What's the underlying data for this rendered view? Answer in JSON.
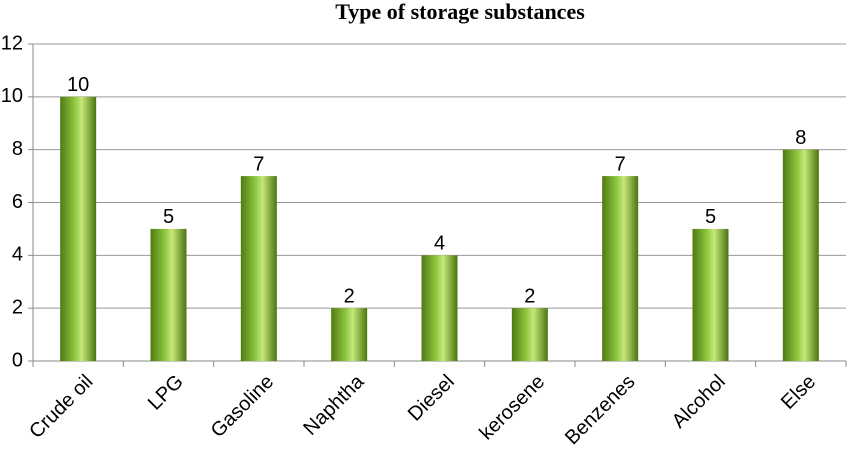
{
  "chart_data": {
    "type": "bar",
    "title": "Type of storage substances",
    "categories": [
      "Crude oil",
      "LPG",
      "Gasoline",
      "Naphtha",
      "Diesel",
      "kerosene",
      "Benzenes",
      "Alcohol",
      "Else"
    ],
    "values": [
      10,
      5,
      7,
      2,
      4,
      2,
      7,
      5,
      8
    ],
    "color": "#8dc63f",
    "ylim": [
      0,
      12
    ],
    "yticks": [
      0,
      2,
      4,
      6,
      8,
      10,
      12
    ],
    "grid": true
  }
}
